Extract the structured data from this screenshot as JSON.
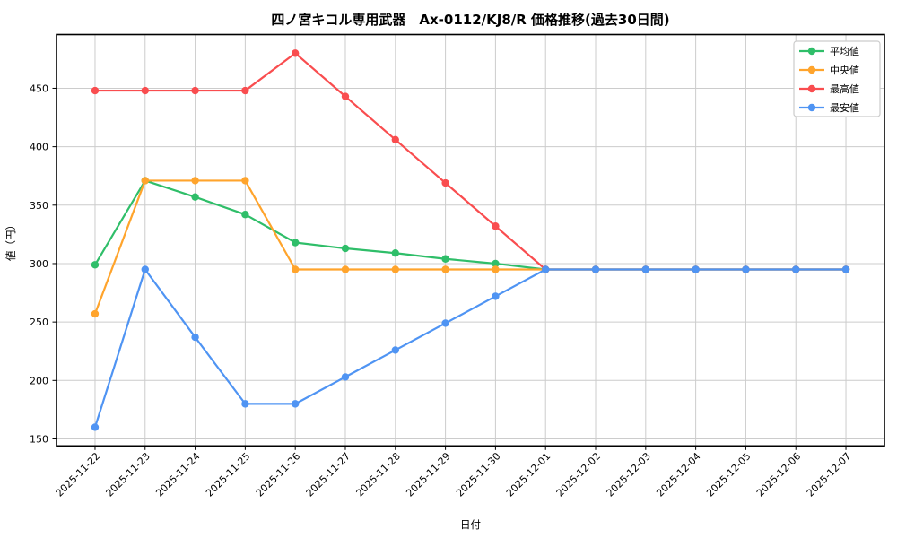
{
  "title": "四ノ宮キコル専用武器　Ax-0112/KJ8/R 価格推移(過去30日間)",
  "chart_data": {
    "type": "line",
    "title": "四ノ宮キコル専用武器　Ax-0112/KJ8/R 価格推移(過去30日間)",
    "xlabel": "日付",
    "ylabel": "値（円）",
    "x": [
      "2025-11-22",
      "2025-11-23",
      "2025-11-24",
      "2025-11-25",
      "2025-11-26",
      "2025-11-27",
      "2025-11-28",
      "2025-11-29",
      "2025-11-30",
      "2025-12-01",
      "2025-12-02",
      "2025-12-03",
      "2025-12-04",
      "2025-12-05",
      "2025-12-06",
      "2025-12-07"
    ],
    "yticks": [
      150,
      200,
      250,
      300,
      350,
      400,
      450
    ],
    "ylim": [
      144,
      496
    ],
    "xlim": [
      -0.77,
      15.77
    ],
    "grid": true,
    "legend_position": "upper right",
    "series": [
      {
        "name": "平均値",
        "key": "average",
        "color": "#2fbe69",
        "values": [
          299,
          371,
          357,
          342,
          318,
          313,
          309,
          304,
          300,
          295,
          295,
          295,
          295,
          295,
          295,
          295
        ]
      },
      {
        "name": "中央値",
        "key": "median",
        "color": "#ffa42c",
        "values": [
          257,
          371,
          371,
          371,
          295,
          295,
          295,
          295,
          295,
          295,
          295,
          295,
          295,
          295,
          295,
          295
        ]
      },
      {
        "name": "最高値",
        "key": "max",
        "color": "#f94d4f",
        "values": [
          448,
          448,
          448,
          448,
          480,
          443,
          406,
          369,
          332,
          295,
          295,
          295,
          295,
          295,
          295,
          295
        ]
      },
      {
        "name": "最安値",
        "key": "min",
        "color": "#4f94f3",
        "values": [
          160,
          295,
          237,
          180,
          180,
          203,
          226,
          249,
          272,
          295,
          295,
          295,
          295,
          295,
          295,
          295
        ]
      }
    ]
  },
  "style": {
    "background": "#ffffff",
    "grid_color": "#cccccc",
    "axis_color": "#000000",
    "legend_border": "#cccccc",
    "legend_background": "#ffffff"
  }
}
